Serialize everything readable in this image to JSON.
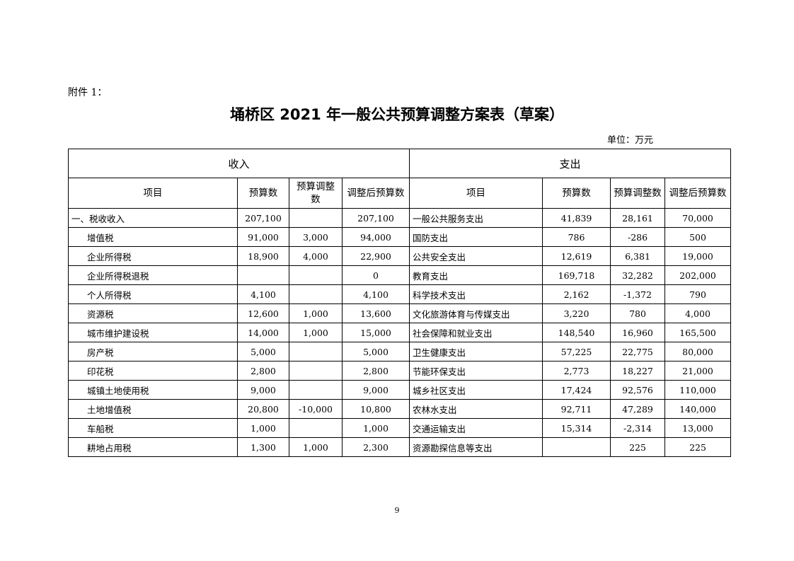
{
  "attachment": "附件 1：",
  "title": "埇桥区 2021 年一般公共预算调整方案表（草案）",
  "unit": "单位：万元",
  "sections": {
    "income": "收入",
    "expense": "支出"
  },
  "columns": [
    "项目",
    "预算数",
    "预算调整数",
    "调整后预算数",
    "项目",
    "预算数",
    "预算调整数",
    "调整后预算数"
  ],
  "income_rows": [
    {
      "item": "一、税收收入",
      "budget": "207,100",
      "adjust": "",
      "adjusted": "207,100"
    },
    {
      "item": "增值税",
      "budget": "91,000",
      "adjust": "3,000",
      "adjusted": "94,000"
    },
    {
      "item": "企业所得税",
      "budget": "18,900",
      "adjust": "4,000",
      "adjusted": "22,900"
    },
    {
      "item": "企业所得税退税",
      "budget": "",
      "adjust": "",
      "adjusted": "0"
    },
    {
      "item": "个人所得税",
      "budget": "4,100",
      "adjust": "",
      "adjusted": "4,100"
    },
    {
      "item": "资源税",
      "budget": "12,600",
      "adjust": "1,000",
      "adjusted": "13,600"
    },
    {
      "item": "城市维护建设税",
      "budget": "14,000",
      "adjust": "1,000",
      "adjusted": "15,000"
    },
    {
      "item": "房产税",
      "budget": "5,000",
      "adjust": "",
      "adjusted": "5,000"
    },
    {
      "item": "印花税",
      "budget": "2,800",
      "adjust": "",
      "adjusted": "2,800"
    },
    {
      "item": "城镇土地使用税",
      "budget": "9,000",
      "adjust": "",
      "adjusted": "9,000"
    },
    {
      "item": "土地增值税",
      "budget": "20,800",
      "adjust": "-10,000",
      "adjusted": "10,800"
    },
    {
      "item": "车船税",
      "budget": "1,000",
      "adjust": "",
      "adjusted": "1,000"
    },
    {
      "item": "耕地占用税",
      "budget": "1,300",
      "adjust": "1,000",
      "adjusted": "2,300"
    }
  ],
  "expense_rows": [
    {
      "item": "一般公共服务支出",
      "budget": "41,839",
      "adjust": "28,161",
      "adjusted": "70,000"
    },
    {
      "item": "国防支出",
      "budget": "786",
      "adjust": "-286",
      "adjusted": "500"
    },
    {
      "item": "公共安全支出",
      "budget": "12,619",
      "adjust": "6,381",
      "adjusted": "19,000"
    },
    {
      "item": "教育支出",
      "budget": "169,718",
      "adjust": "32,282",
      "adjusted": "202,000"
    },
    {
      "item": "科学技术支出",
      "budget": "2,162",
      "adjust": "-1,372",
      "adjusted": "790"
    },
    {
      "item": "文化旅游体育与传媒支出",
      "budget": "3,220",
      "adjust": "780",
      "adjusted": "4,000"
    },
    {
      "item": "社会保障和就业支出",
      "budget": "148,540",
      "adjust": "16,960",
      "adjusted": "165,500"
    },
    {
      "item": "卫生健康支出",
      "budget": "57,225",
      "adjust": "22,775",
      "adjusted": "80,000"
    },
    {
      "item": "节能环保支出",
      "budget": "2,773",
      "adjust": "18,227",
      "adjusted": "21,000"
    },
    {
      "item": "城乡社区支出",
      "budget": "17,424",
      "adjust": "92,576",
      "adjusted": "110,000"
    },
    {
      "item": "农林水支出",
      "budget": "92,711",
      "adjust": "47,289",
      "adjusted": "140,000"
    },
    {
      "item": "交通运输支出",
      "budget": "15,314",
      "adjust": "-2,314",
      "adjusted": "13,000"
    },
    {
      "item": "资源勘探信息等支出",
      "budget": "",
      "adjust": "225",
      "adjusted": "225"
    }
  ],
  "page_number": "9"
}
